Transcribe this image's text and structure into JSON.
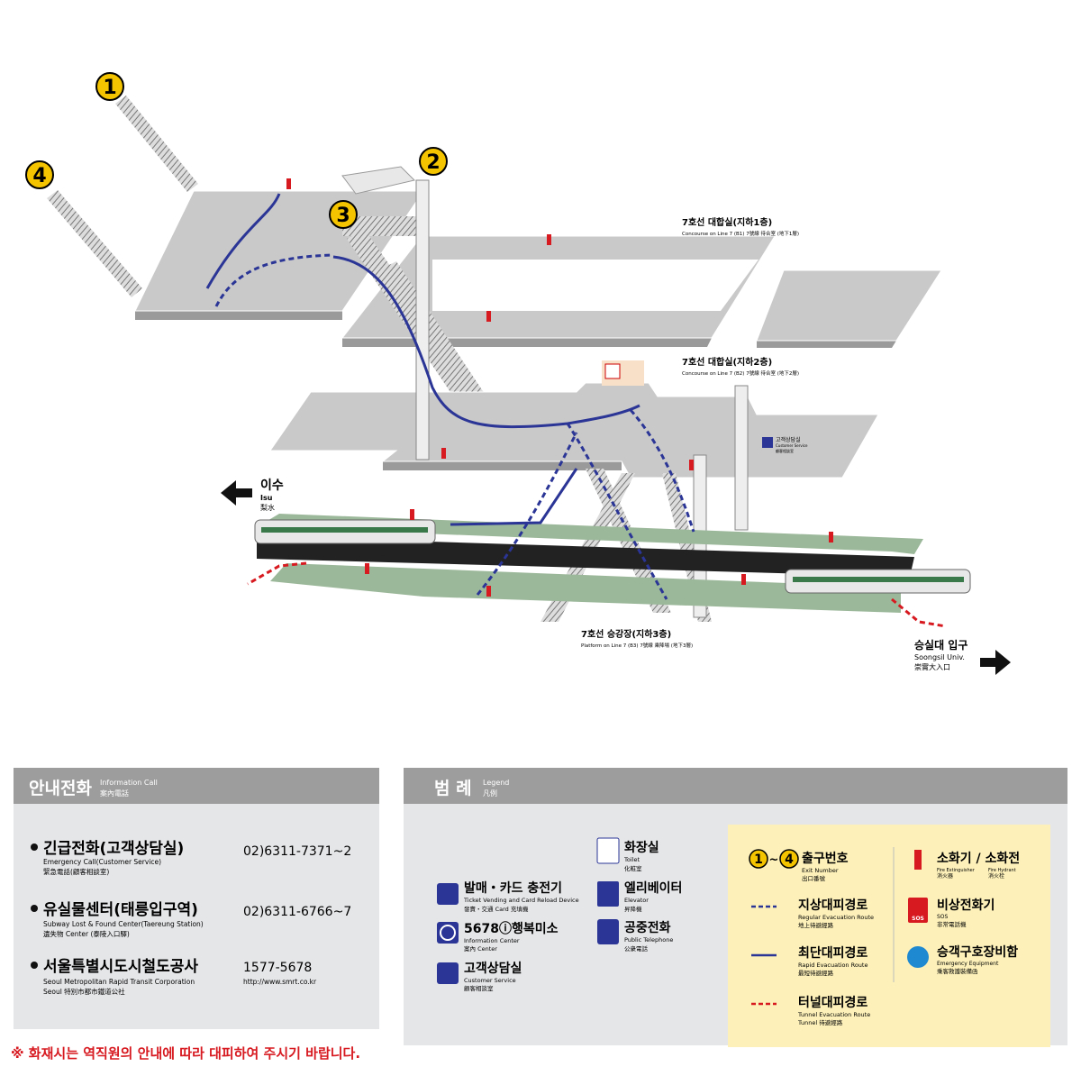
{
  "exits": [
    "1",
    "2",
    "3",
    "4"
  ],
  "levels": [
    {
      "title": "7호선 대합실(지하1층)",
      "subtitle": "Concourse on Line 7 (B1) 7號線 待合室 (地下1層)"
    },
    {
      "title": "7호선 대합실(지하2층)",
      "subtitle": "Concourse on Line 7 (B2) 7號線 待合室 (地下2層)"
    },
    {
      "title": "7호선 승강장(지하3층)",
      "subtitle": "Platform on Line 7 (B3) 7號線 乘降場 (地下3層)"
    }
  ],
  "directions": [
    {
      "name": "이수",
      "english": "Isu",
      "hanja": "梨水"
    },
    {
      "name": "승실대 입구",
      "english": "Soongsil Univ.",
      "hanja": "崇實大入口"
    }
  ],
  "map_label": {
    "name": "고객상담실",
    "english": "Customer Service",
    "hanja": "顧客相談室"
  },
  "info_call": {
    "header": {
      "title": "안내전화",
      "english": "Information Call",
      "hanja": "案內電話"
    },
    "items": [
      {
        "name": "긴급전화(고객상담실)",
        "english": "Emergency Call(Customer Service)",
        "hanja": "緊急電話(顧客相談室)",
        "phone": "02)6311-7371~2"
      },
      {
        "name": "유실물센터(태릉입구역)",
        "english": "Subway Lost & Found Center(Taereung Station)",
        "hanja": "遺失物 Center (泰陵入口驛)",
        "phone": "02)6311-6766~7"
      },
      {
        "name": "서울특별시도시철도공사",
        "english": "Seoul Metropolitan Rapid Transit Corporation",
        "hanja": "Seoul 特別市都市鐵道公社",
        "phone": "1577-5678",
        "url": "http://www.smrt.co.kr"
      }
    ]
  },
  "legend": {
    "header": {
      "title": "범 례",
      "english": "Legend",
      "hanja": "凡例"
    },
    "facilities": [
      {
        "name": "발매・카드 충전기",
        "english": "Ticket Vending and Card Reload Device",
        "hanja": "發賣・交通 Card 充填機"
      },
      {
        "name": "5678ⓘ행복미소",
        "english": "Information Center",
        "hanja": "案內 Center"
      },
      {
        "name": "고객상담실",
        "english": "Customer Service",
        "hanja": "顧客相談室"
      },
      {
        "name": "화장실",
        "english": "Toilet",
        "hanja": "化粧室"
      },
      {
        "name": "엘리베이터",
        "english": "Elevator",
        "hanja": "昇降機"
      },
      {
        "name": "공중전화",
        "english": "Public Telephone",
        "hanja": "公衆電話"
      }
    ],
    "exit_number": {
      "from": "1",
      "separator": "~",
      "to": "4",
      "name": "출구번호",
      "english": "Exit Number",
      "hanja": "出口番號"
    },
    "routes": [
      {
        "name": "지상대피경로",
        "english": "Regular Evacuation Route",
        "hanja": "地上待避經路"
      },
      {
        "name": "최단대피경로",
        "english": "Rapid Evacuation Route",
        "hanja": "最短待避經路"
      },
      {
        "name": "터널대피경로",
        "english": "Tunnel Evacuation Route",
        "hanja": "Tunnel 待避經路"
      }
    ],
    "fire": {
      "name": "소화기 / 소화전",
      "extinguisher": "Fire Extinguisher",
      "extinguisher_hanja": "消火器",
      "hydrant": "Fire Hydrant",
      "hydrant_hanja": "消火栓"
    },
    "sos": {
      "name": "비상전화기",
      "icon": "SOS",
      "english": "SOS",
      "hanja": "非常電話機"
    },
    "equipment": {
      "name": "승객구호장비함",
      "english": "Emergency Equipment",
      "hanja": "乘客救護裝備函"
    }
  },
  "warning": "※ 화재시는 역직원의 안내에 따라 대피하여 주시기 바랍니다."
}
